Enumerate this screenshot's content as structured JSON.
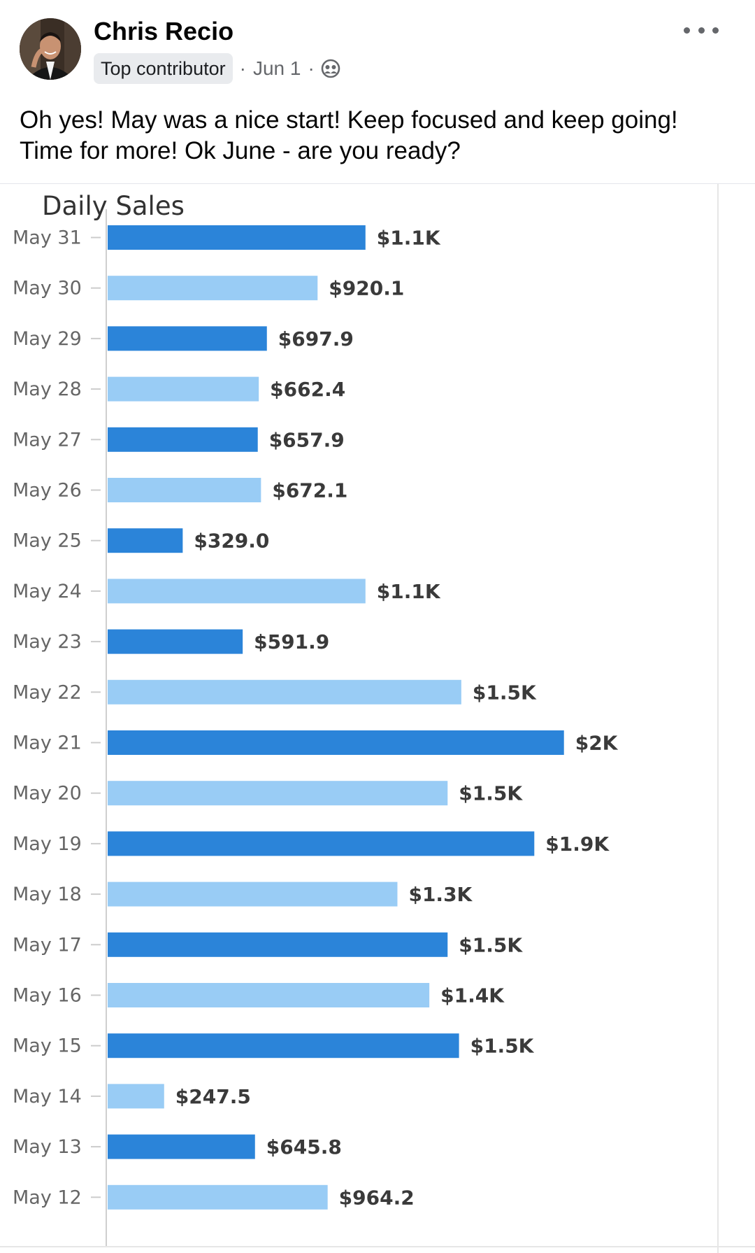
{
  "post": {
    "author": "Chris Recio",
    "badge": "Top contributor",
    "date": "Jun 1",
    "separator": "·",
    "audience_icon": "friends-icon",
    "more_icon": "more-dots-icon",
    "text_lines": [
      "Oh yes! May was a nice start! Keep focused and keep going!",
      "Time for more! Ok June - are you ready?"
    ]
  },
  "chart_data": {
    "type": "bar",
    "orientation": "horizontal",
    "title": "Daily Sales",
    "xlabel": "",
    "ylabel": "",
    "grid": false,
    "legend": "none",
    "xlim": [
      0,
      2200
    ],
    "colors": {
      "dark": "#2b84d9",
      "light": "#99ccf5"
    },
    "categories": [
      "May 31",
      "May 30",
      "May 29",
      "May 28",
      "May 27",
      "May 26",
      "May 25",
      "May 24",
      "May 23",
      "May 22",
      "May 21",
      "May 20",
      "May 19",
      "May 18",
      "May 17",
      "May 16",
      "May 15",
      "May 14",
      "May 13",
      "May 12"
    ],
    "values": [
      1130,
      920.1,
      697.9,
      662.4,
      657.9,
      672.1,
      329.0,
      1130,
      591.9,
      1550,
      2000,
      1490,
      1870,
      1270,
      1490,
      1410,
      1540,
      247.5,
      645.8,
      964.2
    ],
    "value_labels": [
      "$1.1K",
      "$920.1",
      "$697.9",
      "$662.4",
      "$657.9",
      "$672.1",
      "$329.0",
      "$1.1K",
      "$591.9",
      "$1.5K",
      "$2K",
      "$1.5K",
      "$1.9K",
      "$1.3K",
      "$1.5K",
      "$1.4K",
      "$1.5K",
      "$247.5",
      "$645.8",
      "$964.2"
    ],
    "bar_shades": [
      "dark",
      "light",
      "dark",
      "light",
      "dark",
      "light",
      "dark",
      "light",
      "dark",
      "light",
      "dark",
      "light",
      "dark",
      "light",
      "dark",
      "light",
      "dark",
      "light",
      "dark",
      "light"
    ]
  }
}
